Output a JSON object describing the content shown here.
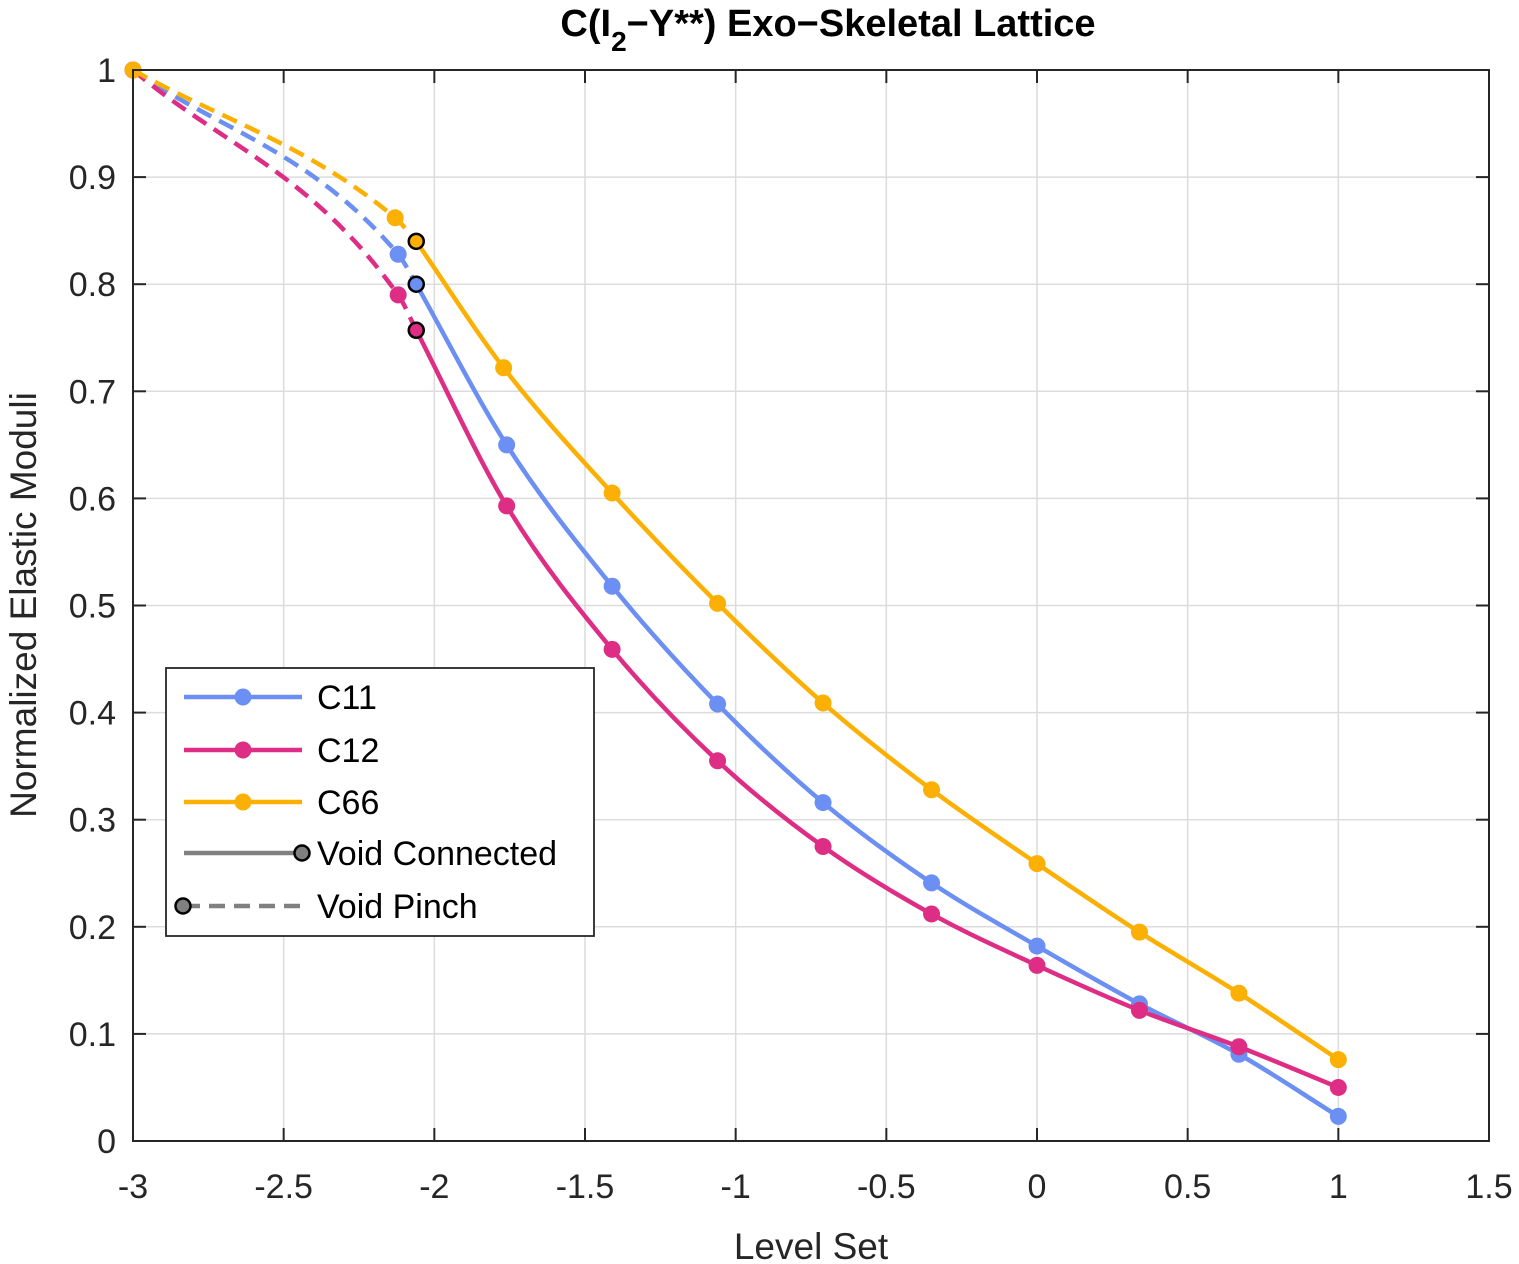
{
  "chart_data": {
    "type": "line",
    "title": {
      "prefix": "C(I",
      "subscript": "2",
      "suffix": "−Y**) Exo−Skeletal Lattice"
    },
    "xlabel": "Level Set",
    "ylabel": "Normalized Elastic Moduli",
    "xlim": [
      -3,
      1.5
    ],
    "ylim": [
      0,
      1
    ],
    "xticks": [
      -3,
      -2.5,
      -2,
      -1.5,
      -1,
      -0.5,
      0,
      0.5,
      1,
      1.5
    ],
    "xtick_labels": [
      "-3",
      "-2.5",
      "-2",
      "-1.5",
      "-1",
      "-0.5",
      "0",
      "0.5",
      "1",
      "1.5"
    ],
    "yticks": [
      0,
      0.1,
      0.2,
      0.3,
      0.4,
      0.5,
      0.6,
      0.7,
      0.8,
      0.9,
      1
    ],
    "ytick_labels": [
      "0",
      "0.1",
      "0.2",
      "0.3",
      "0.4",
      "0.5",
      "0.6",
      "0.7",
      "0.8",
      "0.9",
      "1"
    ],
    "grid": true,
    "legend_position": "middle-left",
    "transition_x": -2.06,
    "series": [
      {
        "name": "C11",
        "color": "#6b8ff2",
        "pinch": [
          [
            -3,
            1.0
          ],
          [
            -2.12,
            0.828
          ],
          [
            -2.06,
            0.8
          ]
        ],
        "connected": [
          [
            -2.06,
            0.8
          ],
          [
            -1.76,
            0.65
          ],
          [
            -1.41,
            0.518
          ],
          [
            -1.06,
            0.408
          ],
          [
            -0.71,
            0.316
          ],
          [
            -0.35,
            0.241
          ],
          [
            0,
            0.182
          ],
          [
            0.34,
            0.128
          ],
          [
            0.67,
            0.081
          ],
          [
            1.0,
            0.023
          ]
        ]
      },
      {
        "name": "C12",
        "color": "#dd2d84",
        "pinch": [
          [
            -3,
            1.0
          ],
          [
            -2.12,
            0.79
          ],
          [
            -2.06,
            0.757
          ]
        ],
        "connected": [
          [
            -2.06,
            0.757
          ],
          [
            -1.76,
            0.593
          ],
          [
            -1.41,
            0.459
          ],
          [
            -1.06,
            0.355
          ],
          [
            -0.71,
            0.275
          ],
          [
            -0.35,
            0.212
          ],
          [
            0,
            0.164
          ],
          [
            0.34,
            0.122
          ],
          [
            0.67,
            0.088
          ],
          [
            1.0,
            0.05
          ]
        ]
      },
      {
        "name": "C66",
        "color": "#fbb003",
        "pinch": [
          [
            -3,
            1.0
          ],
          [
            -2.13,
            0.862
          ],
          [
            -2.06,
            0.84
          ]
        ],
        "connected": [
          [
            -2.06,
            0.84
          ],
          [
            -1.77,
            0.722
          ],
          [
            -1.41,
            0.605
          ],
          [
            -1.06,
            0.502
          ],
          [
            -0.71,
            0.409
          ],
          [
            -0.35,
            0.328
          ],
          [
            0,
            0.259
          ],
          [
            0.34,
            0.195
          ],
          [
            0.67,
            0.138
          ],
          [
            1.0,
            0.076
          ]
        ]
      }
    ],
    "legend": {
      "entries": [
        "C11",
        "C12",
        "C66",
        "Void Connected",
        "Void Pinch"
      ],
      "style_color": "#808080",
      "marker_color": "#808080"
    }
  }
}
